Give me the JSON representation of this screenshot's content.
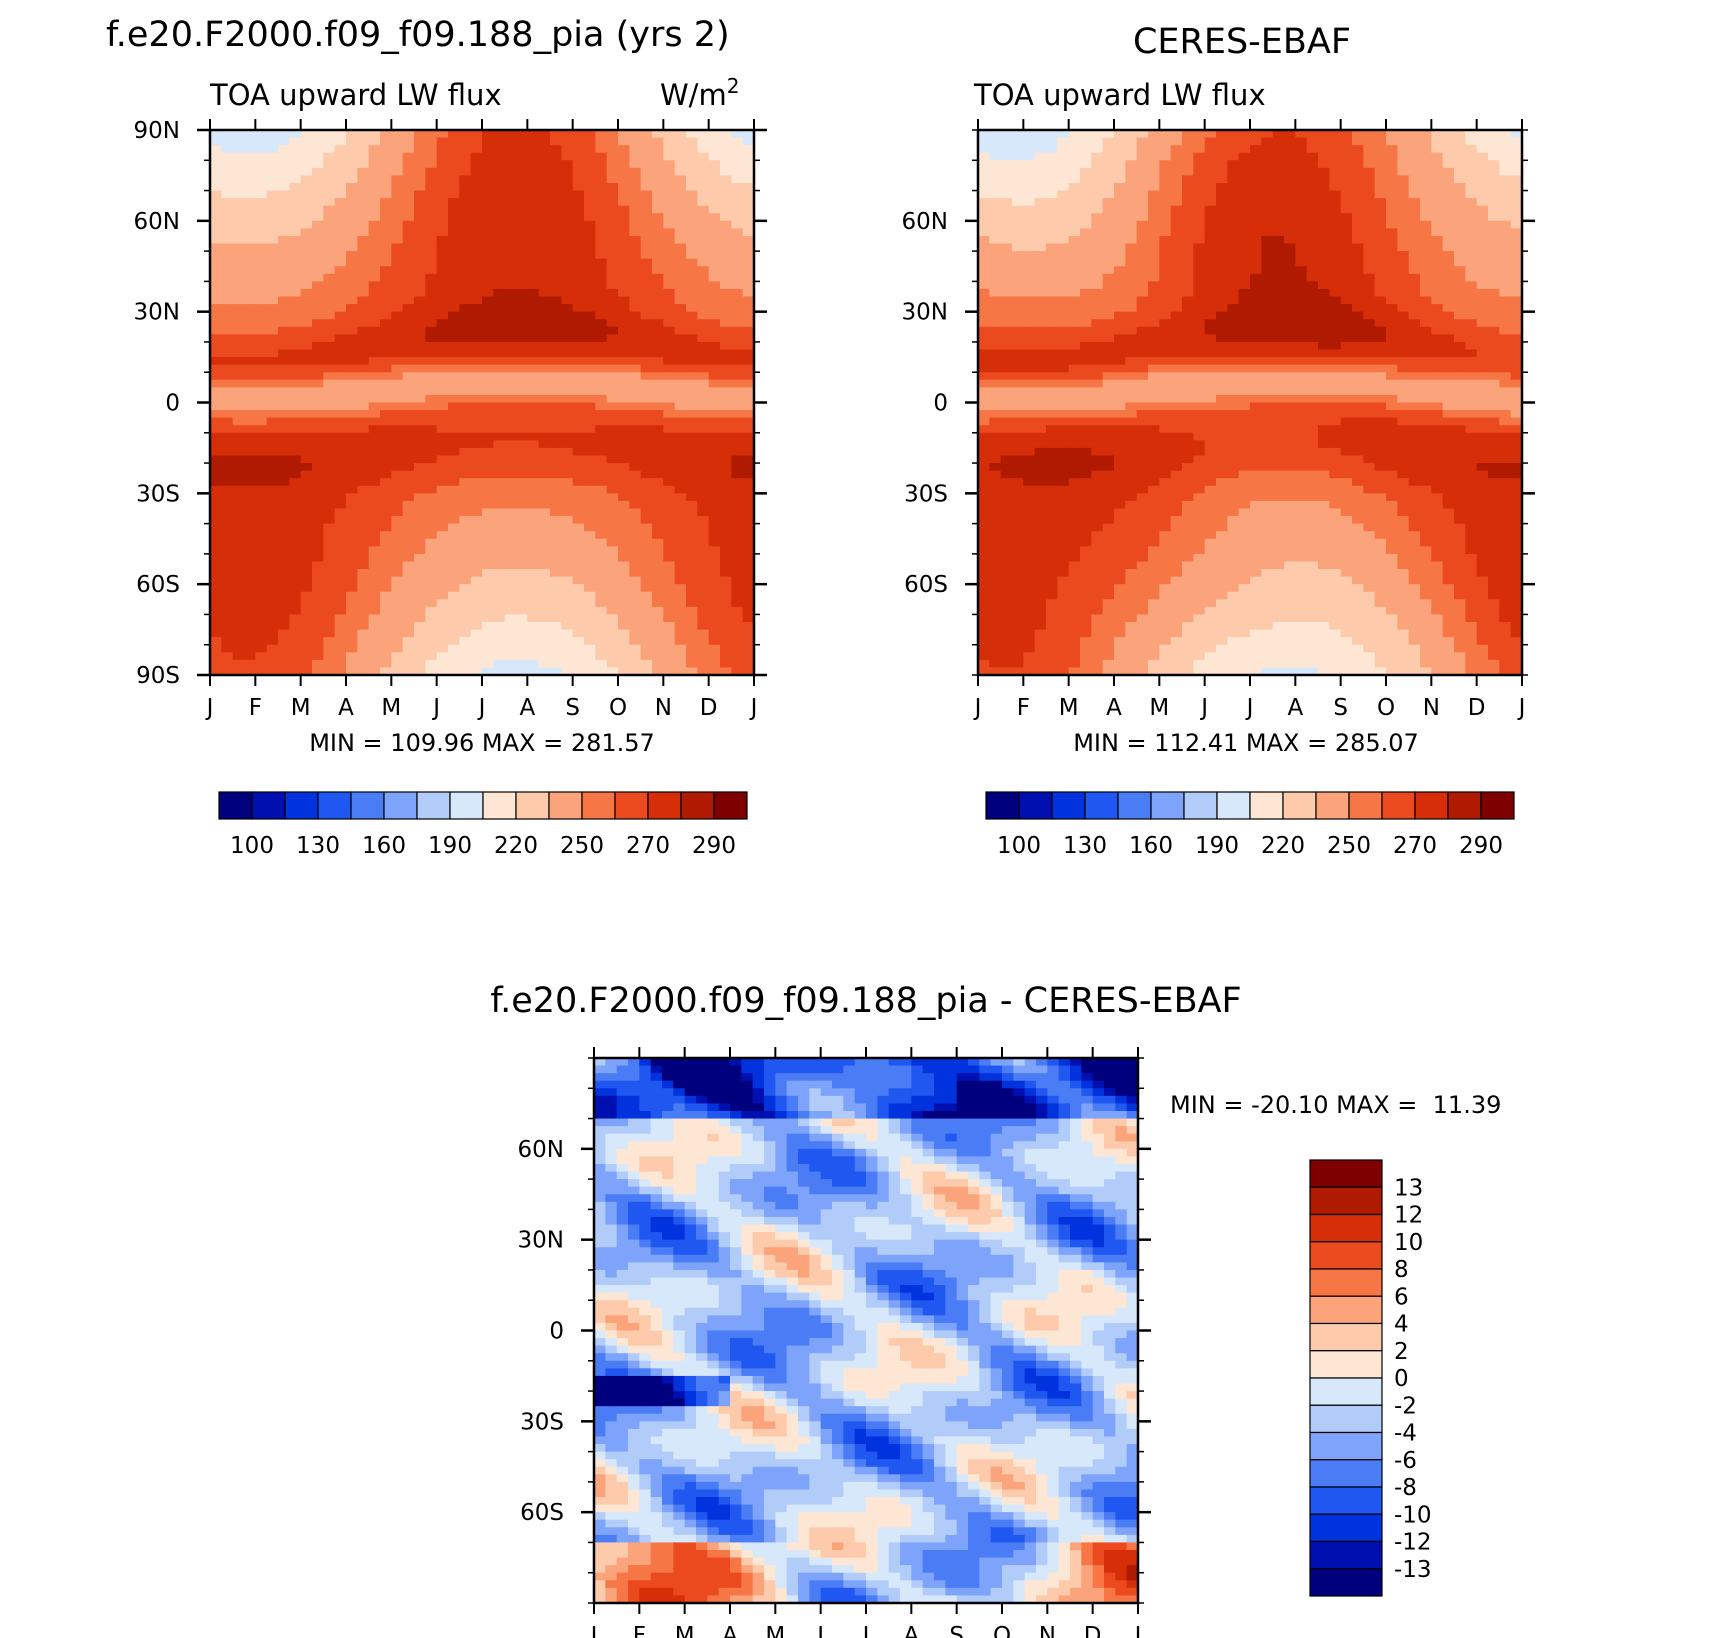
{
  "palettes": {
    "abs": [
      "#00007f",
      "#0010b0",
      "#0033dd",
      "#1f57f0",
      "#4a7cf5",
      "#7da3fa",
      "#b2ccfa",
      "#d8e8fb",
      "#fde6d3",
      "#fdcaab",
      "#fba37b",
      "#f67646",
      "#ea4a1e",
      "#d52e08",
      "#b01a00",
      "#7e0000"
    ],
    "diff": [
      "#00007f",
      "#0010b0",
      "#0033dd",
      "#1f57f0",
      "#4a7cf5",
      "#7da3fa",
      "#b2ccfa",
      "#d8e8fb",
      "#fde6d3",
      "#fdcaab",
      "#fba37b",
      "#f67646",
      "#ea4a1e",
      "#d52e08",
      "#b01a00",
      "#7e0000"
    ]
  },
  "chart_data": [
    {
      "type": "heatmap",
      "title": "f.e20.F2000.f09_f09.188_pia (yrs 2)",
      "left_label": "TOA upward LW flux",
      "right_label": "W/m",
      "right_label_sup": "2",
      "x_tick_labels": [
        "J",
        "F",
        "M",
        "A",
        "M",
        "J",
        "J",
        "A",
        "S",
        "O",
        "N",
        "D",
        "J"
      ],
      "y_tick_labels": [
        "90N",
        "60N",
        "30N",
        "0",
        "30S",
        "60S",
        "90S"
      ],
      "y_tick_values": [
        90,
        60,
        30,
        0,
        -30,
        -60,
        -90
      ],
      "ylim": [
        -90,
        90
      ],
      "xlim": [
        0,
        12
      ],
      "min_max_text": "MIN = 109.96 MAX = 281.57",
      "min": 109.96,
      "max": 281.57,
      "colorbar_labels": [
        "100",
        "130",
        "160",
        "190",
        "220",
        "250",
        "270",
        "290"
      ],
      "levels": [
        100,
        115,
        130,
        145,
        160,
        175,
        190,
        205,
        220,
        235,
        250,
        260,
        270,
        280,
        290
      ],
      "model": "model"
    },
    {
      "type": "heatmap",
      "title": "CERES-EBAF",
      "left_label": "TOA upward LW flux",
      "x_tick_labels": [
        "J",
        "F",
        "M",
        "A",
        "M",
        "J",
        "J",
        "A",
        "S",
        "O",
        "N",
        "D",
        "J"
      ],
      "y_tick_labels": [
        "60N",
        "30N",
        "0",
        "30S",
        "60S"
      ],
      "y_tick_values": [
        60,
        30,
        0,
        -30,
        -60
      ],
      "ylim": [
        -90,
        90
      ],
      "xlim": [
        0,
        12
      ],
      "min_max_text": "MIN = 112.41 MAX = 285.07",
      "min": 112.41,
      "max": 285.07,
      "colorbar_labels": [
        "100",
        "130",
        "160",
        "190",
        "220",
        "250",
        "270",
        "290"
      ],
      "levels": [
        100,
        115,
        130,
        145,
        160,
        175,
        190,
        205,
        220,
        235,
        250,
        260,
        270,
        280,
        290
      ],
      "model": "obs"
    },
    {
      "type": "heatmap",
      "title": "f.e20.F2000.f09_f09.188_pia - CERES-EBAF",
      "x_tick_labels": [
        "J",
        "F",
        "M",
        "A",
        "M",
        "J",
        "J",
        "A",
        "S",
        "O",
        "N",
        "D",
        "J"
      ],
      "y_tick_labels": [
        "60N",
        "30N",
        "0",
        "30S",
        "60S"
      ],
      "y_tick_values": [
        60,
        30,
        0,
        -30,
        -60
      ],
      "ylim": [
        -90,
        90
      ],
      "xlim": [
        0,
        12
      ],
      "min_max_text": "MIN = -20.10 MAX =  11.39",
      "min": -20.1,
      "max": 11.39,
      "colorbar_labels": [
        "13",
        "12",
        "10",
        "8",
        "6",
        "4",
        "2",
        "0",
        "-2",
        "-4",
        "-6",
        "-8",
        "-10",
        "-12",
        "-13"
      ],
      "levels": [
        -13,
        -12,
        -10,
        -8,
        -6,
        -4,
        -2,
        0,
        2,
        4,
        6,
        8,
        10,
        12,
        13
      ],
      "model": "diff"
    }
  ]
}
